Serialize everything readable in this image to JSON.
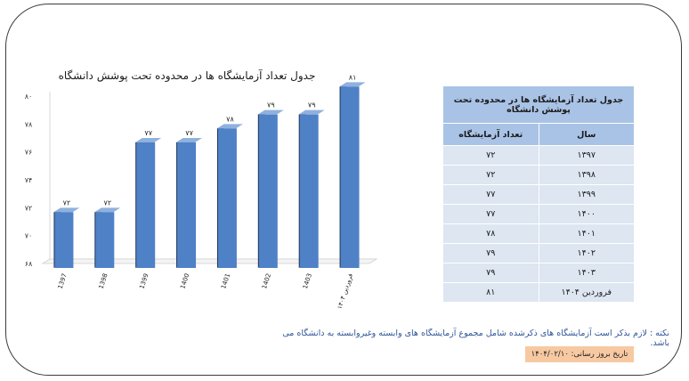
{
  "chart_data": {
    "type": "bar",
    "title": "جدول تعداد آزمایشگاه ها در محدوده  تحت پوشش دانشگاه",
    "categories": [
      "1397",
      "1398",
      "1399",
      "1400",
      "1401",
      "1402",
      "1403",
      "فروردین ۱۴۰۴"
    ],
    "values": [
      72,
      72,
      77,
      77,
      78,
      79,
      79,
      81
    ],
    "value_labels": [
      "۷۲",
      "۷۲",
      "۷۷",
      "۷۷",
      "۷۸",
      "۷۹",
      "۷۹",
      "۸۱"
    ],
    "yticks": [
      68,
      70,
      72,
      74,
      76,
      78,
      80
    ],
    "ytick_labels": [
      "۶۸",
      "۷۰",
      "۷۲",
      "۷۴",
      "۷۶",
      "۷۸",
      "۸۰"
    ],
    "ylim": [
      68,
      80
    ],
    "grid": false,
    "legend": "none",
    "colors": {
      "bar_front": "#4f81c7",
      "bar_side": "#1f3552",
      "bar_top": "#8fb1de"
    }
  },
  "table": {
    "caption": "جدول تعداد آزمایشگاه ها در محدوده تحت پوشش دانشگاه",
    "headers": [
      "سال",
      "تعداد آزمایشگاه"
    ],
    "rows": [
      [
        "۱۳۹۷",
        "۷۲"
      ],
      [
        "۱۳۹۸",
        "۷۲"
      ],
      [
        "۱۳۹۹",
        "۷۷"
      ],
      [
        "۱۴۰۰",
        "۷۷"
      ],
      [
        "۱۴۰۱",
        "۷۸"
      ],
      [
        "۱۴۰۲",
        "۷۹"
      ],
      [
        "۱۴۰۳",
        "۷۹"
      ],
      [
        "فروردین ۱۴۰۴",
        "۸۱"
      ]
    ]
  },
  "note": "نکته : لازم بذکر است آزمایشگاه های ذکرشده شامل مجموع آزمایشگاه های وابسته وغیروابسته به دانشگاه می باشد.",
  "update_date": "تاریخ بروز رسانی: ۱۴۰۴/۰۲/۱۰"
}
